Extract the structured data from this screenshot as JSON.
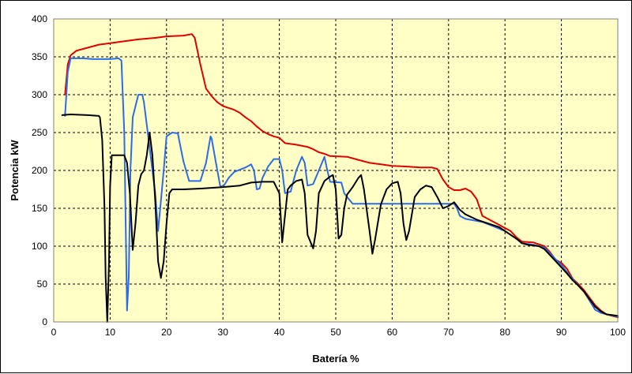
{
  "chart_data": {
    "type": "line",
    "title": "",
    "xlabel": "Batería %",
    "ylabel": "Potencia kW",
    "xlim": [
      0,
      100
    ],
    "ylim": [
      0,
      400
    ],
    "xticks": [
      0,
      10,
      20,
      30,
      40,
      50,
      60,
      70,
      80,
      90,
      100
    ],
    "yticks": [
      0,
      50,
      100,
      150,
      200,
      250,
      300,
      350,
      400
    ],
    "grid": true,
    "legend": "none",
    "plot_background": "#ffffc6",
    "series": [
      {
        "color": "#e00000",
        "points": [
          [
            2,
            300
          ],
          [
            2.5,
            340
          ],
          [
            3,
            352
          ],
          [
            4,
            358
          ],
          [
            6,
            362
          ],
          [
            8,
            366
          ],
          [
            10,
            368
          ],
          [
            12,
            370
          ],
          [
            15,
            373
          ],
          [
            18,
            375
          ],
          [
            20,
            377
          ],
          [
            23,
            378
          ],
          [
            24.5,
            380
          ],
          [
            25,
            375
          ],
          [
            26,
            340
          ],
          [
            27,
            308
          ],
          [
            28,
            298
          ],
          [
            29,
            290
          ],
          [
            30,
            285
          ],
          [
            32,
            280
          ],
          [
            33,
            276
          ],
          [
            34,
            270
          ],
          [
            35,
            265
          ],
          [
            36,
            258
          ],
          [
            37,
            252
          ],
          [
            38,
            248
          ],
          [
            39,
            245
          ],
          [
            40,
            243
          ],
          [
            41,
            236
          ],
          [
            43,
            234
          ],
          [
            45,
            231
          ],
          [
            46,
            228
          ],
          [
            47,
            224
          ],
          [
            48,
            222
          ],
          [
            49,
            219
          ],
          [
            52,
            218
          ],
          [
            54,
            214
          ],
          [
            56,
            210
          ],
          [
            58,
            208
          ],
          [
            60,
            206
          ],
          [
            63,
            205
          ],
          [
            65,
            204
          ],
          [
            67,
            204
          ],
          [
            68,
            202
          ],
          [
            69,
            188
          ],
          [
            70,
            178
          ],
          [
            71,
            174
          ],
          [
            72,
            174
          ],
          [
            73,
            176
          ],
          [
            74,
            172
          ],
          [
            75,
            162
          ],
          [
            76,
            140
          ],
          [
            78,
            132
          ],
          [
            80,
            124
          ],
          [
            81,
            120
          ],
          [
            82,
            112
          ],
          [
            83,
            106
          ],
          [
            85,
            105
          ],
          [
            87,
            100
          ],
          [
            88,
            92
          ],
          [
            89,
            82
          ],
          [
            90,
            78
          ],
          [
            91,
            70
          ],
          [
            92,
            57
          ],
          [
            93,
            50
          ],
          [
            94,
            42
          ],
          [
            95,
            32
          ],
          [
            96,
            22
          ],
          [
            97,
            15
          ],
          [
            98,
            10
          ],
          [
            99,
            8
          ],
          [
            100,
            6
          ]
        ]
      },
      {
        "color": "#2e6be6",
        "points": [
          [
            2,
            272
          ],
          [
            2.5,
            330
          ],
          [
            3,
            348
          ],
          [
            5,
            348
          ],
          [
            7,
            347
          ],
          [
            10,
            347
          ],
          [
            11.5,
            348
          ],
          [
            12,
            345
          ],
          [
            12.5,
            250
          ],
          [
            13,
            15
          ],
          [
            13.3,
            60
          ],
          [
            13.6,
            200
          ],
          [
            14,
            270
          ],
          [
            15,
            300
          ],
          [
            15.7,
            300
          ],
          [
            16,
            290
          ],
          [
            16.5,
            260
          ],
          [
            17,
            230
          ],
          [
            17.5,
            200
          ],
          [
            18,
            170
          ],
          [
            18.5,
            120
          ],
          [
            19,
            160
          ],
          [
            19.5,
            200
          ],
          [
            20,
            245
          ],
          [
            21,
            250
          ],
          [
            22,
            249
          ],
          [
            22.5,
            230
          ],
          [
            23,
            212
          ],
          [
            24,
            186
          ],
          [
            26,
            186
          ],
          [
            27,
            210
          ],
          [
            27.8,
            245
          ],
          [
            28,
            242
          ],
          [
            29,
            200
          ],
          [
            29.5,
            180
          ],
          [
            30,
            178
          ],
          [
            31,
            190
          ],
          [
            32,
            198
          ],
          [
            34,
            204
          ],
          [
            35,
            208
          ],
          [
            35.5,
            200
          ],
          [
            36,
            175
          ],
          [
            36.5,
            176
          ],
          [
            37,
            190
          ],
          [
            38,
            205
          ],
          [
            39,
            215
          ],
          [
            40,
            215
          ],
          [
            40.5,
            200
          ],
          [
            41,
            170
          ],
          [
            42,
            172
          ],
          [
            43,
            200
          ],
          [
            44,
            218
          ],
          [
            44.5,
            210
          ],
          [
            45,
            180
          ],
          [
            46,
            182
          ],
          [
            47,
            200
          ],
          [
            48,
            218
          ],
          [
            48.5,
            200
          ],
          [
            49,
            185
          ],
          [
            51,
            184
          ],
          [
            51.5,
            170
          ],
          [
            52,
            165
          ],
          [
            53,
            156
          ],
          [
            56,
            156
          ],
          [
            62,
            156
          ],
          [
            68,
            156
          ],
          [
            71,
            156
          ],
          [
            71.5,
            150
          ],
          [
            72,
            140
          ],
          [
            73,
            136
          ],
          [
            76,
            132
          ],
          [
            78,
            126
          ],
          [
            80,
            120
          ],
          [
            82,
            110
          ],
          [
            83,
            104
          ],
          [
            85,
            102
          ],
          [
            87,
            98
          ],
          [
            88,
            90
          ],
          [
            90,
            75
          ],
          [
            92,
            56
          ],
          [
            93,
            48
          ],
          [
            94,
            40
          ],
          [
            95,
            28
          ],
          [
            96,
            16
          ],
          [
            97,
            12
          ],
          [
            98,
            10
          ],
          [
            100,
            7
          ]
        ]
      },
      {
        "color": "#000000",
        "points": [
          [
            1.5,
            273
          ],
          [
            3,
            274
          ],
          [
            6,
            273
          ],
          [
            8,
            272
          ],
          [
            8.2,
            270
          ],
          [
            8.6,
            240
          ],
          [
            9,
            150
          ],
          [
            9.2,
            60
          ],
          [
            9.5,
            0
          ],
          [
            9.8,
            80
          ],
          [
            10,
            180
          ],
          [
            10.3,
            220
          ],
          [
            11,
            220
          ],
          [
            12.5,
            220
          ],
          [
            13,
            210
          ],
          [
            13.5,
            170
          ],
          [
            14,
            95
          ],
          [
            14.5,
            130
          ],
          [
            15,
            180
          ],
          [
            15.5,
            195
          ],
          [
            16,
            200
          ],
          [
            16.5,
            220
          ],
          [
            17,
            250
          ],
          [
            17.5,
            220
          ],
          [
            18,
            160
          ],
          [
            18.5,
            80
          ],
          [
            19,
            58
          ],
          [
            19.5,
            80
          ],
          [
            20,
            130
          ],
          [
            20.5,
            170
          ],
          [
            21,
            175
          ],
          [
            23,
            175
          ],
          [
            26,
            176
          ],
          [
            30,
            178
          ],
          [
            33,
            180
          ],
          [
            35,
            184
          ],
          [
            37,
            185
          ],
          [
            39,
            185
          ],
          [
            40,
            170
          ],
          [
            40.5,
            105
          ],
          [
            41,
            140
          ],
          [
            41.5,
            175
          ],
          [
            42,
            180
          ],
          [
            43,
            186
          ],
          [
            44,
            188
          ],
          [
            44.5,
            170
          ],
          [
            45,
            115
          ],
          [
            46,
            97
          ],
          [
            46.5,
            120
          ],
          [
            47,
            170
          ],
          [
            48,
            186
          ],
          [
            49,
            192
          ],
          [
            49.5,
            194
          ],
          [
            50,
            175
          ],
          [
            50.5,
            110
          ],
          [
            51,
            115
          ],
          [
            51.5,
            150
          ],
          [
            52,
            168
          ],
          [
            53,
            178
          ],
          [
            54,
            190
          ],
          [
            54.5,
            194
          ],
          [
            55,
            175
          ],
          [
            56,
            120
          ],
          [
            56.5,
            90
          ],
          [
            57,
            110
          ],
          [
            58,
            155
          ],
          [
            59,
            175
          ],
          [
            60,
            183
          ],
          [
            61,
            185
          ],
          [
            61.5,
            170
          ],
          [
            62,
            130
          ],
          [
            62.5,
            108
          ],
          [
            63,
            120
          ],
          [
            64,
            165
          ],
          [
            65,
            175
          ],
          [
            66,
            180
          ],
          [
            67,
            178
          ],
          [
            68,
            165
          ],
          [
            69,
            150
          ],
          [
            70,
            153
          ],
          [
            71,
            158
          ],
          [
            72,
            148
          ],
          [
            73,
            142
          ],
          [
            75,
            135
          ],
          [
            77,
            130
          ],
          [
            79,
            125
          ],
          [
            80,
            120
          ],
          [
            82,
            110
          ],
          [
            83,
            104
          ],
          [
            84,
            102
          ],
          [
            86,
            100
          ],
          [
            87,
            96
          ],
          [
            88,
            88
          ],
          [
            89,
            80
          ],
          [
            90,
            72
          ],
          [
            91,
            64
          ],
          [
            92,
            55
          ],
          [
            93,
            48
          ],
          [
            94,
            40
          ],
          [
            95,
            30
          ],
          [
            96,
            20
          ],
          [
            97,
            14
          ],
          [
            98,
            10
          ],
          [
            100,
            8
          ]
        ]
      }
    ]
  }
}
